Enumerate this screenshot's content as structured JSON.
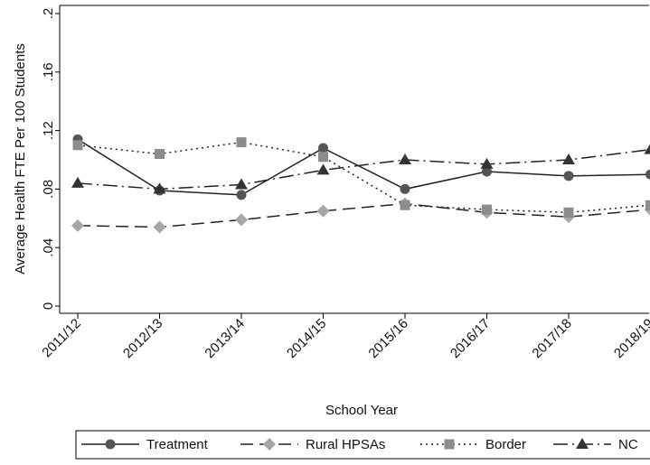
{
  "chart_data": {
    "type": "line",
    "xlabel": "School Year",
    "ylabel": "Average Health FTE Per 100 Students",
    "categories": [
      "2011/12",
      "2012/13",
      "2013/14",
      "2014/15",
      "2015/16",
      "2016/17",
      "2017/18",
      "2018/19"
    ],
    "yticks": [
      "0",
      ".04",
      ".08",
      ".12",
      ".16",
      ".2"
    ],
    "ytick_values": [
      0,
      0.04,
      0.08,
      0.12,
      0.16,
      0.2
    ],
    "ylim": [
      0,
      0.2
    ],
    "grid": false,
    "legend_position": "bottom",
    "series": [
      {
        "name": "Treatment",
        "values": [
          0.114,
          0.079,
          0.076,
          0.108,
          0.08,
          0.092,
          0.089,
          0.09
        ],
        "marker": "circle",
        "dash": "solid",
        "color": "#555555"
      },
      {
        "name": "Rural HPSAs",
        "values": [
          0.055,
          0.054,
          0.059,
          0.065,
          0.07,
          0.064,
          0.061,
          0.066
        ],
        "marker": "diamond",
        "dash": "longdash",
        "color": "#a6a6a6"
      },
      {
        "name": "Border",
        "values": [
          0.11,
          0.104,
          0.112,
          0.102,
          0.069,
          0.066,
          0.064,
          0.069
        ],
        "marker": "square",
        "dash": "dot",
        "color": "#8c8c8c"
      },
      {
        "name": "NC",
        "values": [
          0.084,
          0.08,
          0.083,
          0.093,
          0.1,
          0.097,
          0.1,
          0.107
        ],
        "marker": "triangle",
        "dash": "dashdot",
        "color": "#333333"
      }
    ]
  }
}
